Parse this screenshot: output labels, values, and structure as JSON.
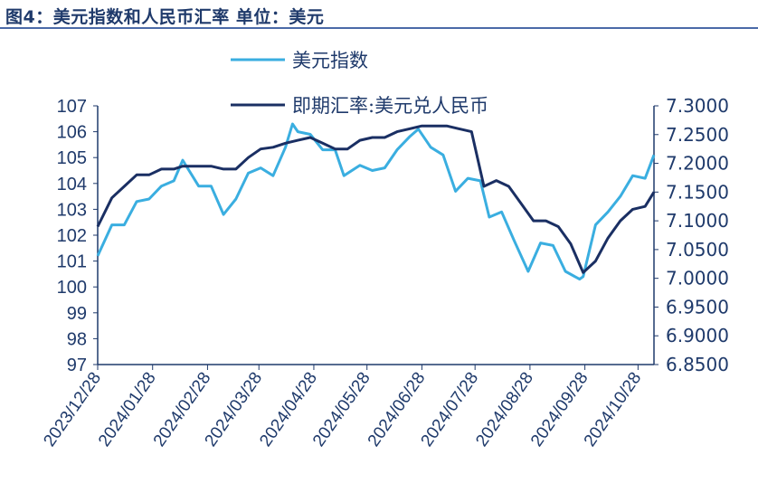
{
  "title": "图4：美元指数和人民币汇率  单位：美元",
  "colors": {
    "title": "#1f3a6b",
    "dxy": "#3aaee0",
    "cny": "#1a2f63",
    "axis": "#1f3a6b",
    "rule": "#4a6aa8"
  },
  "chart_data": {
    "type": "line",
    "title": "图4：美元指数和人民币汇率  单位：美元",
    "x_ticks": [
      "2023/12/28",
      "2024/01/28",
      "2024/02/28",
      "2024/03/28",
      "2024/04/28",
      "2024/05/28",
      "2024/06/28",
      "2024/07/28",
      "2024/08/28",
      "2024/09/28",
      "2024/10/28"
    ],
    "y_left": {
      "range": [
        97,
        107
      ],
      "ticks": [
        "97",
        "98",
        "99",
        "100",
        "101",
        "102",
        "103",
        "104",
        "105",
        "106",
        "107"
      ]
    },
    "y_right": {
      "range": [
        6.85,
        7.3
      ],
      "ticks": [
        "6.8500",
        "6.9000",
        "6.9500",
        "7.0000",
        "7.0500",
        "7.1000",
        "7.1500",
        "7.2000",
        "7.2500",
        "7.3000"
      ]
    },
    "legend_position": "top-center",
    "grid": false,
    "series": [
      {
        "name": "美元指数",
        "axis": "left",
        "color": "#3aaee0",
        "points": [
          [
            "2023/12/28",
            101.2
          ],
          [
            "2024/01/05",
            102.4
          ],
          [
            "2024/01/12",
            102.4
          ],
          [
            "2024/01/19",
            103.3
          ],
          [
            "2024/01/26",
            103.4
          ],
          [
            "2024/02/02",
            103.9
          ],
          [
            "2024/02/09",
            104.1
          ],
          [
            "2024/02/14",
            104.9
          ],
          [
            "2024/02/23",
            103.9
          ],
          [
            "2024/03/01",
            103.9
          ],
          [
            "2024/03/08",
            102.8
          ],
          [
            "2024/03/15",
            103.4
          ],
          [
            "2024/03/22",
            104.4
          ],
          [
            "2024/03/29",
            104.6
          ],
          [
            "2024/04/05",
            104.3
          ],
          [
            "2024/04/12",
            105.4
          ],
          [
            "2024/04/16",
            106.3
          ],
          [
            "2024/04/19",
            106.0
          ],
          [
            "2024/04/26",
            105.9
          ],
          [
            "2024/05/03",
            105.3
          ],
          [
            "2024/05/10",
            105.3
          ],
          [
            "2024/05/15",
            104.3
          ],
          [
            "2024/05/24",
            104.7
          ],
          [
            "2024/05/31",
            104.5
          ],
          [
            "2024/06/07",
            104.6
          ],
          [
            "2024/06/14",
            105.3
          ],
          [
            "2024/06/21",
            105.8
          ],
          [
            "2024/06/26",
            106.1
          ],
          [
            "2024/07/03",
            105.4
          ],
          [
            "2024/07/10",
            105.1
          ],
          [
            "2024/07/17",
            103.7
          ],
          [
            "2024/07/24",
            104.2
          ],
          [
            "2024/07/31",
            104.1
          ],
          [
            "2024/08/05",
            102.7
          ],
          [
            "2024/08/12",
            102.9
          ],
          [
            "2024/08/19",
            101.8
          ],
          [
            "2024/08/27",
            100.6
          ],
          [
            "2024/09/03",
            101.7
          ],
          [
            "2024/09/10",
            101.6
          ],
          [
            "2024/09/17",
            100.6
          ],
          [
            "2024/09/25",
            100.3
          ],
          [
            "2024/09/27",
            100.4
          ],
          [
            "2024/10/04",
            102.4
          ],
          [
            "2024/10/11",
            102.9
          ],
          [
            "2024/10/18",
            103.5
          ],
          [
            "2024/10/25",
            104.3
          ],
          [
            "2024/11/01",
            104.2
          ],
          [
            "2024/11/06",
            105.1
          ]
        ]
      },
      {
        "name": "即期汇率:美元兑人民币",
        "axis": "right",
        "color": "#1a2f63",
        "points": [
          [
            "2023/12/28",
            7.09
          ],
          [
            "2024/01/05",
            7.14
          ],
          [
            "2024/01/12",
            7.16
          ],
          [
            "2024/01/19",
            7.18
          ],
          [
            "2024/01/26",
            7.18
          ],
          [
            "2024/02/02",
            7.19
          ],
          [
            "2024/02/09",
            7.19
          ],
          [
            "2024/02/14",
            7.195
          ],
          [
            "2024/02/23",
            7.195
          ],
          [
            "2024/03/01",
            7.195
          ],
          [
            "2024/03/08",
            7.19
          ],
          [
            "2024/03/15",
            7.19
          ],
          [
            "2024/03/22",
            7.21
          ],
          [
            "2024/03/29",
            7.225
          ],
          [
            "2024/04/05",
            7.228
          ],
          [
            "2024/04/12",
            7.235
          ],
          [
            "2024/04/19",
            7.24
          ],
          [
            "2024/04/26",
            7.245
          ],
          [
            "2024/05/03",
            7.235
          ],
          [
            "2024/05/10",
            7.225
          ],
          [
            "2024/05/17",
            7.225
          ],
          [
            "2024/05/24",
            7.24
          ],
          [
            "2024/05/31",
            7.245
          ],
          [
            "2024/06/07",
            7.245
          ],
          [
            "2024/06/14",
            7.255
          ],
          [
            "2024/06/21",
            7.26
          ],
          [
            "2024/06/28",
            7.265
          ],
          [
            "2024/07/05",
            7.265
          ],
          [
            "2024/07/12",
            7.265
          ],
          [
            "2024/07/19",
            7.26
          ],
          [
            "2024/07/26",
            7.255
          ],
          [
            "2024/08/02",
            7.16
          ],
          [
            "2024/08/09",
            7.17
          ],
          [
            "2024/08/16",
            7.16
          ],
          [
            "2024/08/23",
            7.13
          ],
          [
            "2024/08/30",
            7.1
          ],
          [
            "2024/09/06",
            7.1
          ],
          [
            "2024/09/13",
            7.09
          ],
          [
            "2024/09/20",
            7.06
          ],
          [
            "2024/09/27",
            7.01
          ],
          [
            "2024/10/04",
            7.03
          ],
          [
            "2024/10/11",
            7.07
          ],
          [
            "2024/10/18",
            7.1
          ],
          [
            "2024/10/25",
            7.12
          ],
          [
            "2024/11/01",
            7.125
          ],
          [
            "2024/11/06",
            7.15
          ]
        ]
      }
    ]
  }
}
